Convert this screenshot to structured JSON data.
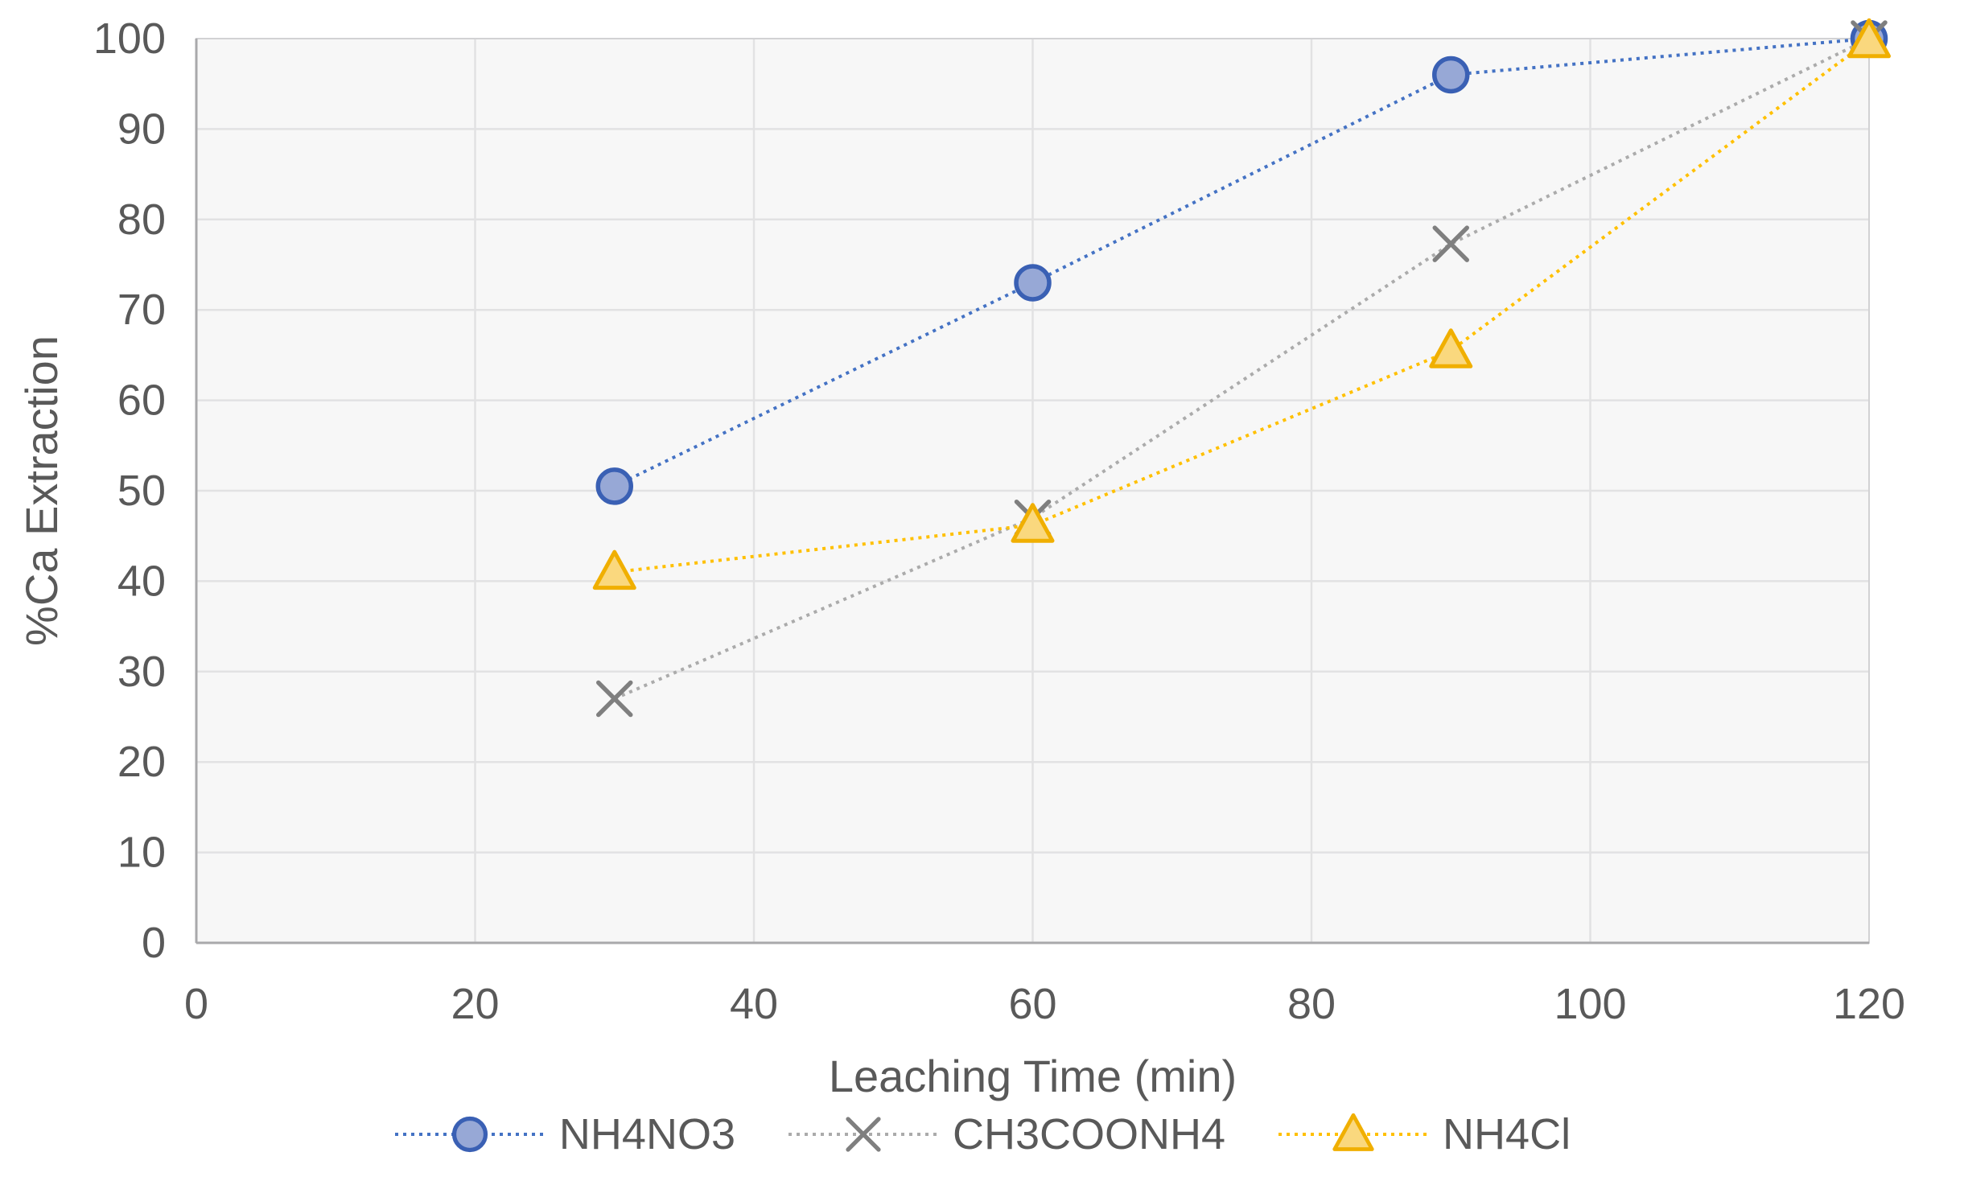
{
  "chart_data": {
    "type": "line",
    "title": "",
    "xlabel": "Leaching Time (min)",
    "ylabel": "%Ca Extraction",
    "xlim": [
      0,
      120
    ],
    "ylim": [
      0,
      100
    ],
    "x_ticks": [
      0,
      20,
      40,
      60,
      80,
      100,
      120
    ],
    "y_ticks": [
      0,
      10,
      20,
      30,
      40,
      50,
      60,
      70,
      80,
      90,
      100
    ],
    "grid": true,
    "line_style": "dotted",
    "legend_position": "bottom",
    "x": [
      30,
      60,
      90,
      120
    ],
    "series": [
      {
        "name": "NH4NO3",
        "marker": "circle",
        "line_color": "#4472c4",
        "marker_fill": "#97a8d6",
        "marker_stroke": "#3a60b4",
        "values": [
          50.5,
          73,
          96,
          100
        ]
      },
      {
        "name": "CH3COONH4",
        "marker": "x",
        "line_color": "#ababab",
        "marker_fill": "none",
        "marker_stroke": "#7f7f7f",
        "values": [
          27,
          47,
          77.3,
          100
        ]
      },
      {
        "name": "NH4Cl",
        "marker": "triangle",
        "line_color": "#ffc000",
        "marker_fill": "#fad87e",
        "marker_stroke": "#f0af00",
        "values": [
          41,
          46.2,
          65.5,
          99.8
        ]
      }
    ],
    "styles": {
      "plot_background": "#f7f7f7",
      "gridline_color": "#e2e2e3",
      "plot_border_color": "#d2d2d4",
      "axis_line_color": "#a9a9ab",
      "tick_label_color": "#595959",
      "axis_title_color": "#595959",
      "legend_text_color": "#595959"
    }
  }
}
